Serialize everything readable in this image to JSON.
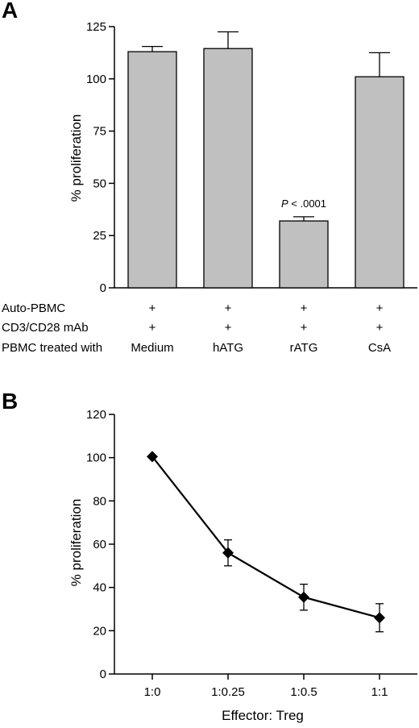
{
  "chart_data": [
    {
      "panel": "A",
      "type": "bar",
      "categories": [
        "Medium",
        "hATG",
        "rATG",
        "CsA"
      ],
      "values": [
        113,
        114.5,
        32,
        101
      ],
      "errors": [
        2.5,
        8,
        2,
        11.5
      ],
      "ylabel": "% proliferation",
      "ylim": [
        0,
        125
      ],
      "yticks": [
        0,
        25,
        50,
        75,
        100,
        125
      ],
      "grid": false,
      "annotations": [
        {
          "category": "rATG",
          "text_italic": "P",
          "text": " < .0001"
        }
      ],
      "condition_rows": [
        {
          "label": "Auto-PBMC",
          "values": [
            "+",
            "+",
            "+",
            "+"
          ]
        },
        {
          "label": "CD3/CD28 mAb",
          "values": [
            "+",
            "+",
            "+",
            "+"
          ]
        },
        {
          "label": "PBMC treated with",
          "values": [
            "Medium",
            "hATG",
            "rATG",
            "CsA"
          ]
        }
      ]
    },
    {
      "panel": "B",
      "type": "line",
      "x": [
        "1:0",
        "1:0.25",
        "1:0.5",
        "1:1"
      ],
      "values": [
        100.5,
        56,
        35.5,
        26
      ],
      "errors": [
        0,
        6,
        6,
        6.5
      ],
      "xlabel": "Effector: Treg",
      "ylabel": "% proliferation",
      "ylim": [
        0,
        120
      ],
      "yticks": [
        0,
        20,
        40,
        60,
        80,
        100,
        120
      ],
      "grid": false,
      "marker": "diamond"
    }
  ]
}
